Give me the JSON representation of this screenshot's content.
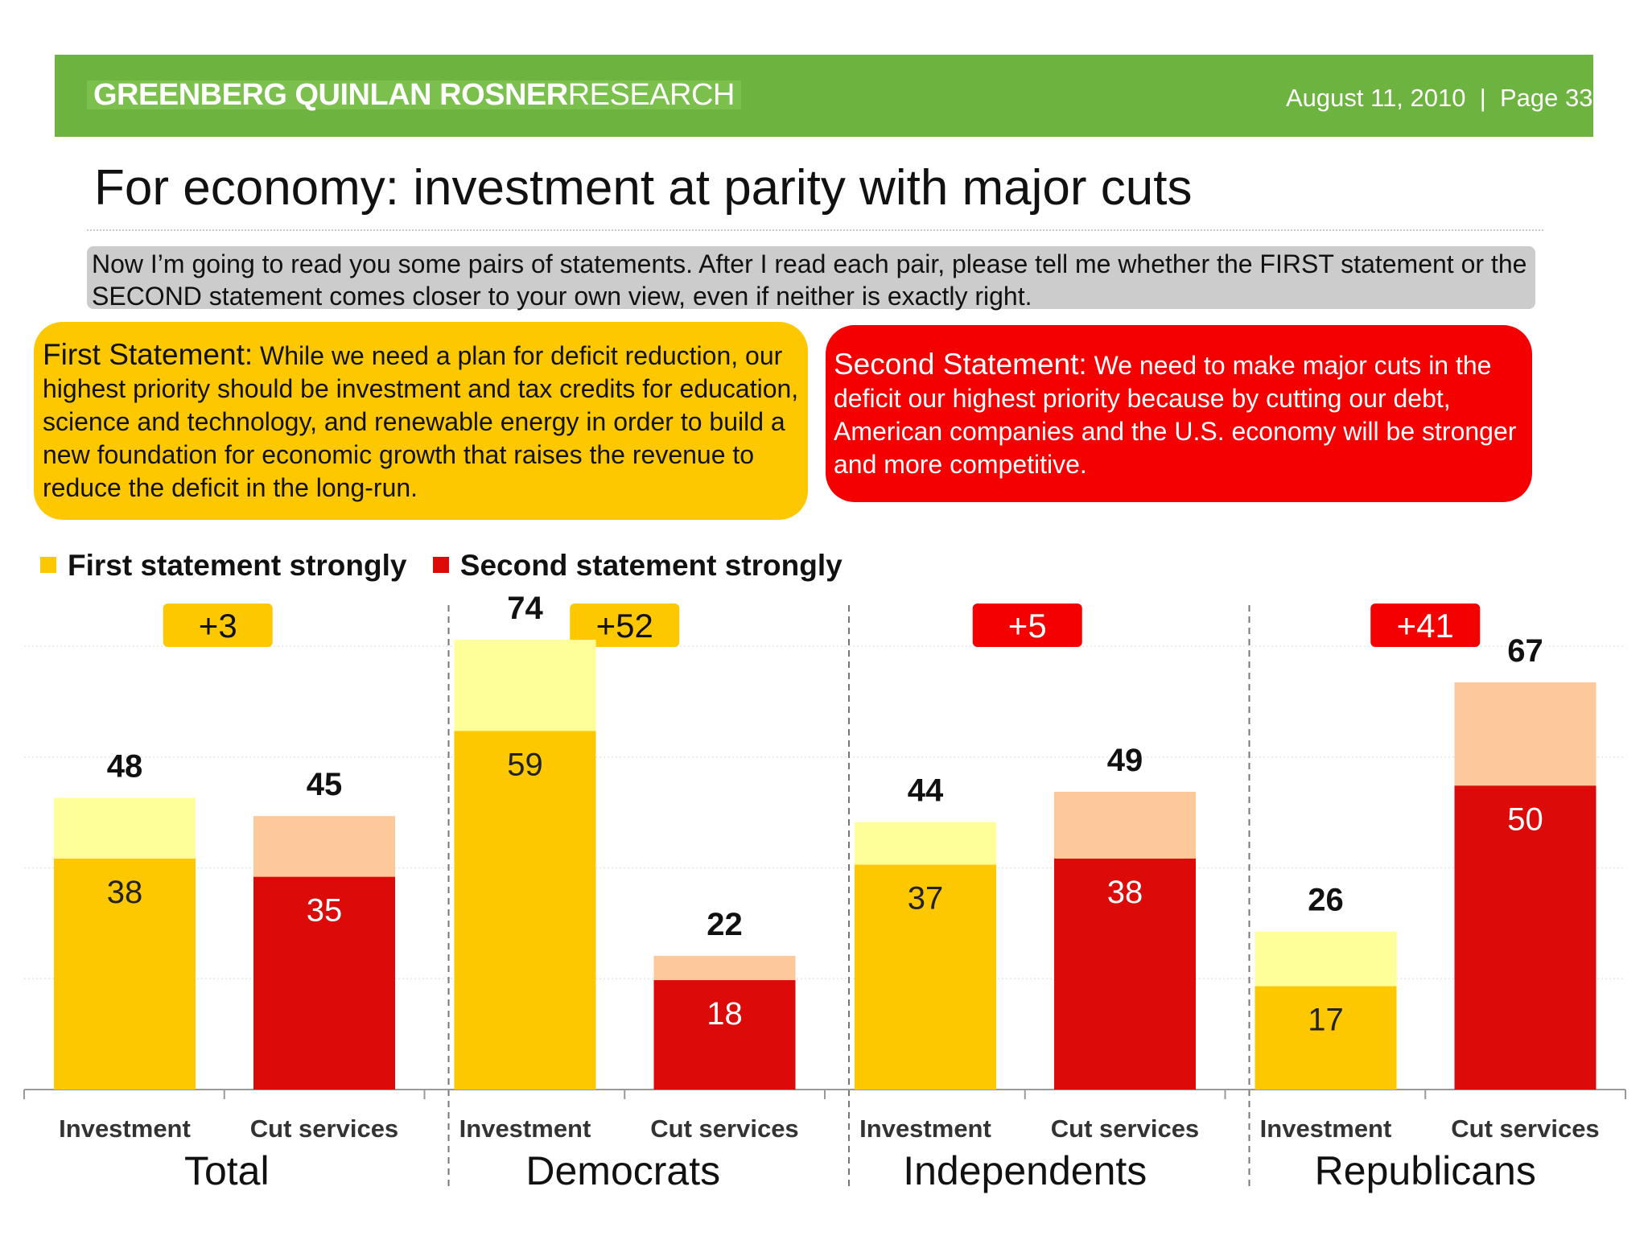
{
  "header": {
    "brand_bold": "GREENBERG QUINLAN ROSNER",
    "brand_light": "RESEARCH",
    "meta": "August 11, 2010  |  Page 33",
    "bar_color": "#6db33f"
  },
  "title": "For economy: investment at parity with major cuts",
  "question": "Now I’m going to read you some pairs of statements. After I read each pair, please tell me whether the FIRST statement or the SECOND statement comes closer to your own view, even if neither is exactly right.",
  "statements": {
    "first": {
      "lead": "First Statement:",
      "text": "While we need a plan for deficit reduction, our highest priority should be investment and tax credits for education, science and technology, and renewable energy in order to build a new foundation for economic growth that raises the revenue to reduce the deficit in the long-run.",
      "color": "#fdc800"
    },
    "second": {
      "lead": "Second Statement:",
      "text": "We need to make major cuts in the deficit our highest priority because by cutting our debt, American companies and the U.S. economy will be stronger and more competitive.",
      "color": "#f40000"
    }
  },
  "legend": {
    "first": "First statement strongly",
    "second": "Second statement strongly"
  },
  "chart_data": {
    "type": "bar",
    "stacked": true,
    "groups": [
      "Total",
      "Democrats",
      "Independents",
      "Republicans"
    ],
    "categories": [
      "Investment",
      "Cut services"
    ],
    "differences": [
      {
        "group": "Total",
        "label": "+3",
        "favors": "first"
      },
      {
        "group": "Democrats",
        "label": "+52",
        "favors": "first"
      },
      {
        "group": "Independents",
        "label": "+5",
        "favors": "second"
      },
      {
        "group": "Republicans",
        "label": "+41",
        "favors": "second"
      }
    ],
    "bars": [
      {
        "group": "Total",
        "category": "Investment",
        "total": 48,
        "strongly": 38,
        "statement": "first"
      },
      {
        "group": "Total",
        "category": "Cut services",
        "total": 45,
        "strongly": 35,
        "statement": "second"
      },
      {
        "group": "Democrats",
        "category": "Investment",
        "total": 74,
        "strongly": 59,
        "statement": "first"
      },
      {
        "group": "Democrats",
        "category": "Cut services",
        "total": 22,
        "strongly": 18,
        "statement": "second"
      },
      {
        "group": "Independents",
        "category": "Investment",
        "total": 44,
        "strongly": 37,
        "statement": "first"
      },
      {
        "group": "Independents",
        "category": "Cut services",
        "total": 49,
        "strongly": 38,
        "statement": "second"
      },
      {
        "group": "Republicans",
        "category": "Investment",
        "total": 26,
        "strongly": 17,
        "statement": "first"
      },
      {
        "group": "Republicans",
        "category": "Cut services",
        "total": 67,
        "strongly": 50,
        "statement": "second"
      }
    ],
    "colors": {
      "first_strong": "#fdc800",
      "first_total": "#ffff99",
      "second_strong": "#dd0a0a",
      "second_total": "#fdc99a",
      "first_badge": "#fdc800",
      "second_badge": "#f40000"
    },
    "ylim": [
      0,
      100
    ],
    "grid": true,
    "legend_position": "top-left"
  }
}
